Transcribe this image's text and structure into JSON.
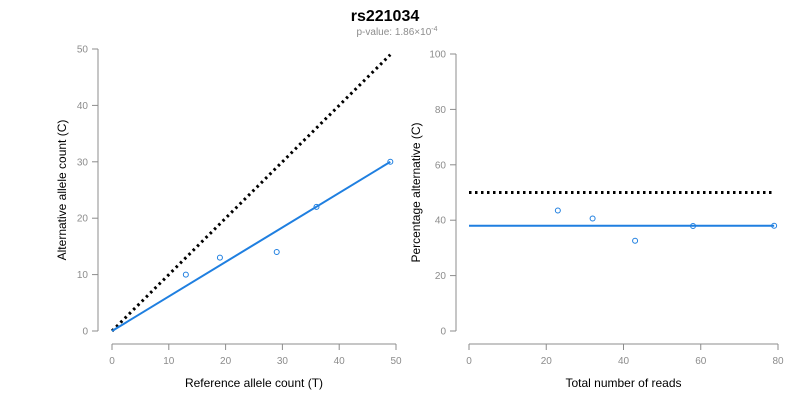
{
  "header": {
    "title": "rs221034",
    "subtitle_prefix": "p-value: 1.86×10",
    "subtitle_exponent": "-4"
  },
  "colors": {
    "fit": "#1f7fe0",
    "expected": "#000000",
    "axis": "#8c8c8c"
  },
  "chart_data": [
    {
      "type": "scatter",
      "xlabel": "Reference allele count (T)",
      "ylabel": "Alternative allele count (C)",
      "xlim": [
        0,
        50
      ],
      "ylim": [
        0,
        50
      ],
      "xticks": [
        0,
        10,
        20,
        30,
        40,
        50
      ],
      "yticks": [
        0,
        10,
        20,
        30,
        40,
        50
      ],
      "grid": false,
      "points": [
        {
          "x": 13,
          "y": 10
        },
        {
          "x": 19,
          "y": 13
        },
        {
          "x": 29,
          "y": 14
        },
        {
          "x": 36,
          "y": 22
        },
        {
          "x": 49,
          "y": 30
        }
      ],
      "fit_line": {
        "x": [
          0,
          49
        ],
        "y": [
          0,
          30
        ]
      },
      "expected_line": {
        "x": [
          0,
          49
        ],
        "y": [
          0,
          49
        ]
      }
    },
    {
      "type": "scatter",
      "xlabel": "Total number of reads",
      "ylabel": "Percentage alternative (C)",
      "xlim": [
        0,
        80
      ],
      "ylim": [
        0,
        100
      ],
      "xticks": [
        0,
        20,
        40,
        60,
        80
      ],
      "yticks": [
        0,
        20,
        40,
        60,
        80,
        100
      ],
      "grid": false,
      "points": [
        {
          "x": 23,
          "y": 43.5
        },
        {
          "x": 32,
          "y": 40.6
        },
        {
          "x": 43,
          "y": 32.6
        },
        {
          "x": 58,
          "y": 37.9
        },
        {
          "x": 79,
          "y": 38.0
        }
      ],
      "fit_line": {
        "x": [
          0,
          79
        ],
        "y": [
          38,
          38
        ]
      },
      "expected_line": {
        "x": [
          0,
          79
        ],
        "y": [
          50,
          50
        ]
      }
    }
  ]
}
